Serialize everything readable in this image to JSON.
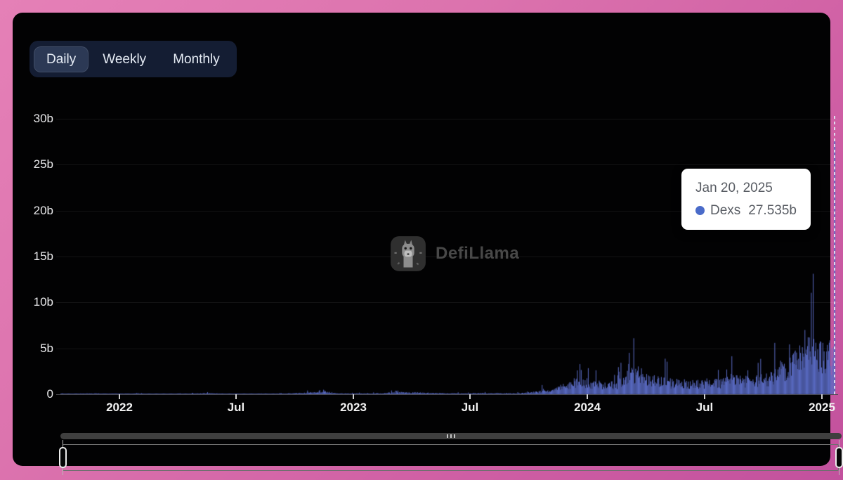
{
  "tabs": {
    "items": [
      {
        "label": "Daily",
        "active": true
      },
      {
        "label": "Weekly",
        "active": false
      },
      {
        "label": "Monthly",
        "active": false
      }
    ]
  },
  "tooltip": {
    "date": "Jan 20, 2025",
    "series": "Dexs",
    "value": "27.535b",
    "dot_color": "#4a6bc9"
  },
  "watermark": {
    "text": "DefiLlama"
  },
  "chart_data": {
    "type": "bar",
    "title": "",
    "series": [
      {
        "name": "Dexs"
      }
    ],
    "unit": "USD billions of daily DEX volume",
    "ylim": [
      0,
      30
    ],
    "y_ticks": [
      "0",
      "5b",
      "10b",
      "15b",
      "20b",
      "25b",
      "30b"
    ],
    "x_ticks": [
      "2022",
      "Jul",
      "2023",
      "Jul",
      "2024",
      "Jul",
      "2025"
    ],
    "x_range": [
      "2021-10-01",
      "2025-01-20"
    ],
    "grid": "horizontal-faint",
    "legend": "none (hover tooltip only)",
    "highlight": {
      "date": "2025-01-20",
      "label": "Jan 20, 2025",
      "value_b": 27.535
    },
    "monthly_avg_daily_volume_b": [
      [
        "2021-10",
        0.05
      ],
      [
        "2021-11",
        0.08
      ],
      [
        "2021-12",
        0.06
      ],
      [
        "2022-01",
        0.06
      ],
      [
        "2022-02",
        0.05
      ],
      [
        "2022-03",
        0.05
      ],
      [
        "2022-04",
        0.05
      ],
      [
        "2022-05",
        0.09
      ],
      [
        "2022-06",
        0.05
      ],
      [
        "2022-07",
        0.04
      ],
      [
        "2022-08",
        0.06
      ],
      [
        "2022-09",
        0.06
      ],
      [
        "2022-10",
        0.12
      ],
      [
        "2022-11",
        0.22
      ],
      [
        "2022-12",
        0.07
      ],
      [
        "2023-01",
        0.07
      ],
      [
        "2023-02",
        0.1
      ],
      [
        "2023-03",
        0.18
      ],
      [
        "2023-04",
        0.14
      ],
      [
        "2023-05",
        0.1
      ],
      [
        "2023-06",
        0.08
      ],
      [
        "2023-07",
        0.1
      ],
      [
        "2023-08",
        0.09
      ],
      [
        "2023-09",
        0.07
      ],
      [
        "2023-10",
        0.25
      ],
      [
        "2023-11",
        0.55
      ],
      [
        "2023-12",
        1.4
      ],
      [
        "2024-01",
        1.05
      ],
      [
        "2024-02",
        0.95
      ],
      [
        "2024-03",
        2.3
      ],
      [
        "2024-04",
        1.4
      ],
      [
        "2024-05",
        1.15
      ],
      [
        "2024-06",
        1.05
      ],
      [
        "2024-07",
        1.1
      ],
      [
        "2024-08",
        1.55
      ],
      [
        "2024-09",
        1.3
      ],
      [
        "2024-10",
        1.75
      ],
      [
        "2024-11",
        3.1
      ],
      [
        "2024-12",
        4.6
      ],
      [
        "2025-01",
        3.9
      ]
    ],
    "spike_days_b": [
      [
        "2022-11-09",
        0.45
      ],
      [
        "2023-03-11",
        0.4
      ],
      [
        "2023-12-16",
        2.6
      ],
      [
        "2024-03-05",
        3.3
      ],
      [
        "2024-08-05",
        2.7
      ],
      [
        "2024-10-19",
        5.6
      ],
      [
        "2024-11-12",
        4.0
      ],
      [
        "2024-12-05",
        7.0
      ],
      [
        "2024-12-10",
        6.2
      ],
      [
        "2025-01-20",
        27.535
      ]
    ],
    "bar_color": "#5b6cc5"
  },
  "colors": {
    "outer_bg_start": "#e580b7",
    "outer_bg_end": "#c2519d",
    "panel_bg": "#020203",
    "tab_bg": "#141d33",
    "tab_active_bg": "#2c3955",
    "axis_text": "#e8e8ea",
    "tooltip_text": "#585c63"
  },
  "brush": {
    "grip_icon": "|||"
  }
}
